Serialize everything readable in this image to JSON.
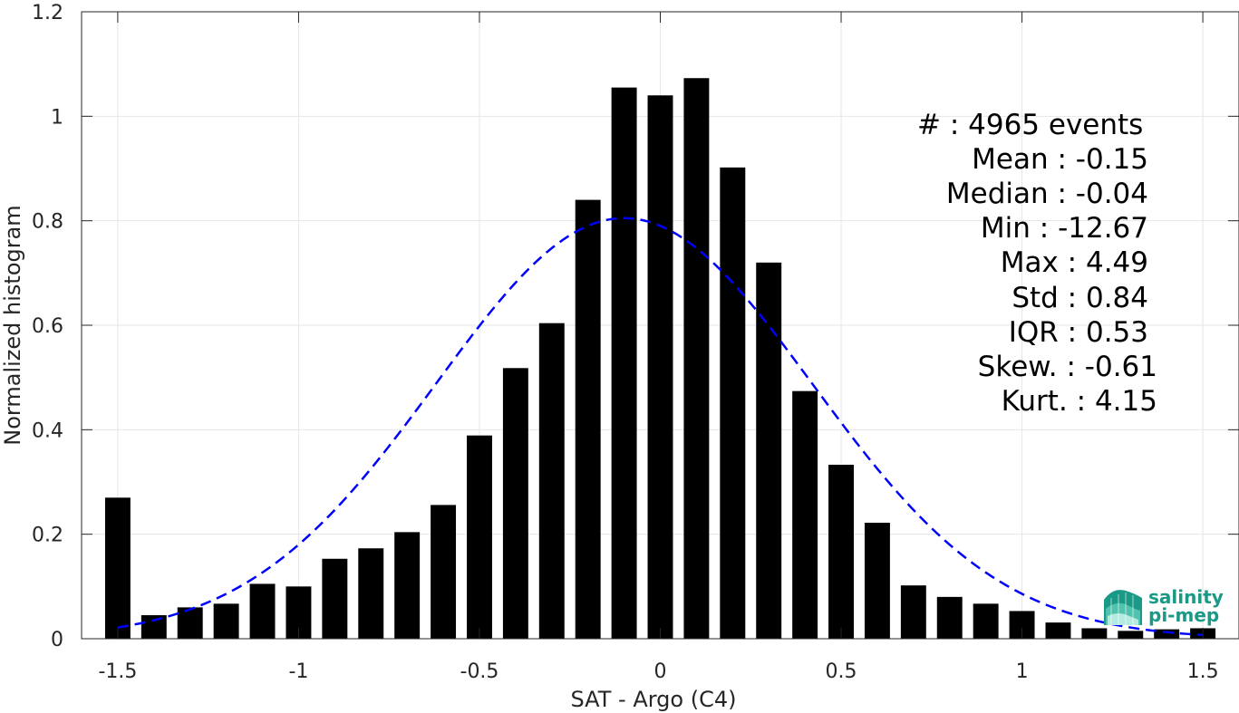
{
  "chart_data": {
    "type": "bar",
    "xlabel": "SAT - Argo (C4)",
    "ylabel": "Normalized histogram",
    "xlim": [
      -1.6,
      1.6
    ],
    "ylim": [
      0,
      1.2
    ],
    "xticks": [
      -1.5,
      -1,
      -0.5,
      0,
      0.5,
      1,
      1.5
    ],
    "xtick_labels": [
      "-1.5",
      "-1",
      "-0.5",
      "0",
      "0.5",
      "1",
      "1.5"
    ],
    "yticks": [
      0,
      0.2,
      0.4,
      0.6,
      0.8,
      1,
      1.2
    ],
    "ytick_labels": [
      "0",
      "0.2",
      "0.4",
      "0.6",
      "0.8",
      "1",
      "1.2"
    ],
    "grid": true,
    "bar_color": "#000000",
    "bin_width": 0.1,
    "x": [
      -1.5,
      -1.4,
      -1.3,
      -1.2,
      -1.1,
      -1.0,
      -0.9,
      -0.8,
      -0.7,
      -0.6,
      -0.5,
      -0.4,
      -0.3,
      -0.2,
      -0.1,
      0.0,
      0.1,
      0.2,
      0.3,
      0.4,
      0.5,
      0.6,
      0.7,
      0.8,
      0.9,
      1.0,
      1.1,
      1.2,
      1.3,
      1.4,
      1.5
    ],
    "values": [
      0.27,
      0.045,
      0.06,
      0.067,
      0.105,
      0.1,
      0.153,
      0.173,
      0.204,
      0.256,
      0.389,
      0.518,
      0.604,
      0.84,
      1.055,
      1.04,
      1.073,
      0.902,
      0.72,
      0.474,
      0.333,
      0.222,
      0.102,
      0.08,
      0.067,
      0.053,
      0.031,
      0.02,
      0.015,
      0.018,
      0.02
    ],
    "fit_curve": {
      "type": "gaussian",
      "line_style": "dashed",
      "color": "#0000ff",
      "peak": 0.805,
      "mean": -0.1,
      "sigma": 0.52,
      "x_range": [
        -1.5,
        1.5
      ]
    },
    "stats": {
      "events": "#  : 4965 events",
      "mean": "Mean : -0.15",
      "median": "Median : -0.04",
      "min": "Min : -12.67",
      "max": "Max : 4.49",
      "std": "Std : 0.84",
      "iqr": "IQR : 0.53",
      "skew": "Skew. : -0.61",
      "kurt": "Kurt. : 4.15"
    }
  },
  "logo": {
    "line1": "salinity",
    "line2": "pi-mep",
    "color": "#1a9a86"
  }
}
